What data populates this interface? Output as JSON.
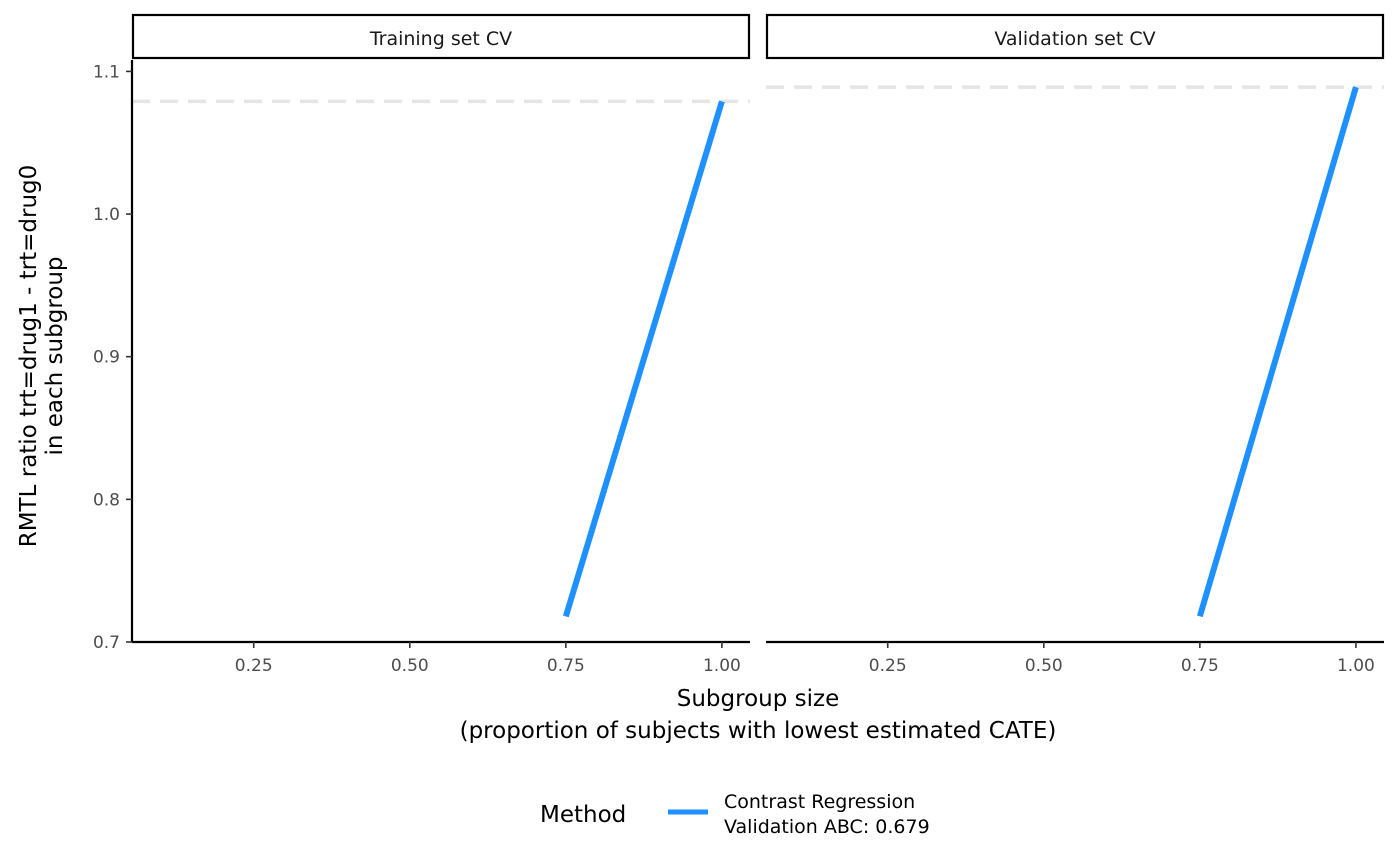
{
  "chart_data": {
    "type": "line",
    "panels": [
      {
        "strip_label": "Training set CV",
        "x": [
          0.75,
          1.0
        ],
        "y": [
          0.718,
          1.079
        ],
        "reference_y": 1.079
      },
      {
        "strip_label": "Validation set CV",
        "x": [
          0.75,
          1.0
        ],
        "y": [
          0.718,
          1.089
        ],
        "reference_y": 1.089
      }
    ],
    "x_ticks": [
      0.25,
      0.5,
      0.75,
      1.0
    ],
    "x_tick_labels": [
      "0.25",
      "0.50",
      "0.75",
      "1.00"
    ],
    "y_ticks": [
      0.7,
      0.8,
      0.9,
      1.0,
      1.1
    ],
    "y_tick_labels": [
      "0.7",
      "0.8",
      "0.9",
      "1.0",
      "1.1"
    ],
    "xlim": [
      0.055,
      1.045
    ],
    "ylim": [
      0.7,
      1.108
    ],
    "xlabel_line1": "Subgroup size",
    "xlabel_line2": "(proportion of subjects with lowest estimated CATE)",
    "ylabel_line1": "RMTL ratio trt=drug1 - trt=drug0",
    "ylabel_line2": "in each subgroup",
    "legend": {
      "title": "Method",
      "position": "bottom",
      "entries": [
        {
          "line1": "Contrast Regression",
          "line2": "Validation ABC: 0.679",
          "color": "#1E90FF"
        }
      ]
    },
    "series_color": "#1E90FF",
    "reference_color": "#E5E5E5",
    "grid": false
  }
}
